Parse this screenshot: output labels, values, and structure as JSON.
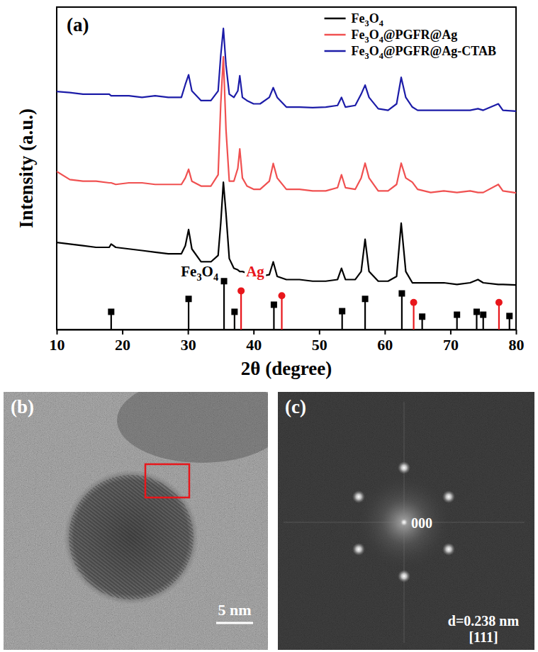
{
  "chart_data": {
    "type": "line",
    "panel": "(a)",
    "x_label": "2θ (degree)",
    "y_label": "Intensity (a.u.)",
    "xlim": [
      10,
      80
    ],
    "ylim": [
      0,
      100
    ],
    "xticks": [
      10,
      20,
      30,
      40,
      50,
      60,
      70,
      80
    ],
    "tick_labels": "x",
    "grid": false,
    "legend": "upper right",
    "x": [
      10,
      12,
      14,
      16,
      18,
      18.3,
      19,
      21,
      23,
      25,
      27,
      29,
      29.6,
      30.1,
      30.6,
      32,
      33.5,
      34.6,
      35.0,
      35.4,
      35.8,
      36.3,
      37.0,
      37.6,
      37.9,
      38.3,
      39,
      40,
      41,
      42.4,
      43.0,
      43.6,
      45,
      47,
      49,
      51,
      52.8,
      53.4,
      54,
      55.5,
      56.4,
      57.0,
      57.6,
      59,
      60.5,
      61.8,
      62.5,
      63.2,
      64.2,
      65,
      67,
      69,
      71,
      73,
      74.2,
      75,
      77.3,
      78,
      80
    ],
    "series": [
      {
        "name": "Fe3O4",
        "color": "#000000",
        "values": [
          27,
          26.5,
          26,
          25.5,
          25.5,
          26.5,
          25.5,
          25,
          24.5,
          24,
          23.5,
          23.5,
          26,
          31,
          25,
          21,
          21,
          23,
          33,
          45.7,
          36,
          22,
          19,
          18.5,
          18,
          18,
          17.5,
          17,
          16.5,
          17,
          21,
          16.5,
          15.5,
          15.5,
          15,
          15,
          15.5,
          19,
          15.5,
          15.5,
          18,
          28,
          18,
          15,
          15,
          16.5,
          33,
          18,
          14.5,
          14.5,
          14.5,
          14.5,
          14,
          14.5,
          15.5,
          14.5,
          14,
          14,
          13.8
        ]
      },
      {
        "name": "Fe3O4@PGFR@Ag",
        "color": "#f05050",
        "values": [
          49,
          46.5,
          46,
          46,
          45.5,
          45.5,
          45,
          45.5,
          45.5,
          45,
          45,
          45,
          47,
          49.7,
          46,
          44.5,
          44.5,
          48,
          70,
          84.6,
          62,
          46,
          46,
          50,
          56,
          47,
          44.5,
          43.5,
          43.5,
          46,
          51.5,
          47,
          43.5,
          43.5,
          43,
          43,
          44,
          48,
          44,
          43.5,
          47,
          51.6,
          47,
          43,
          43,
          45,
          51.6,
          47,
          45.7,
          43.5,
          42.5,
          43,
          42.5,
          43,
          42.5,
          42.5,
          45,
          43,
          42.4
        ]
      },
      {
        "name": "Fe3O4@PGFR@Ag-CTAB",
        "color": "#1c1ca8",
        "values": [
          73.8,
          73.5,
          73,
          73,
          73,
          72.5,
          72.5,
          72.5,
          72,
          72.5,
          72,
          72,
          76,
          79,
          74,
          71,
          71,
          74,
          85,
          93.4,
          82,
          73,
          72,
          74,
          78.7,
          72,
          71,
          70,
          70,
          72,
          75,
          72,
          69,
          69,
          68.8,
          69,
          69.5,
          72,
          69,
          69.5,
          73,
          75.8,
          72,
          68.5,
          68,
          70,
          78.2,
          72,
          69,
          68,
          68,
          68,
          68,
          68,
          68.5,
          68,
          70,
          68,
          67.7
        ]
      },
      {
        "name": "Fe3O4",
        "type": "stick",
        "color": "#000000",
        "marker": "square",
        "x": [
          18.3,
          30.1,
          35.5,
          37.1,
          43.1,
          53.5,
          57.0,
          62.6,
          65.7,
          71.0,
          74.0,
          75.0,
          79.0
        ],
        "values": [
          5.5,
          9.5,
          15,
          5.5,
          7.7,
          5.7,
          9.5,
          11.2,
          4,
          4.6,
          5.5,
          4.6,
          4.2
        ]
      },
      {
        "name": "Ag",
        "type": "stick",
        "color": "#e8161b",
        "marker": "circle",
        "x": [
          38.1,
          44.3,
          64.4,
          77.4
        ],
        "values": [
          12,
          10.5,
          8.4,
          8.4
        ]
      }
    ]
  },
  "images": [
    {
      "label": "(b)",
      "scale_bar": "5 nm"
    },
    {
      "label": "(c)",
      "spot_label": "000",
      "d_spacing": "d=0.238 nm",
      "zone_axis": "[111]"
    }
  ]
}
